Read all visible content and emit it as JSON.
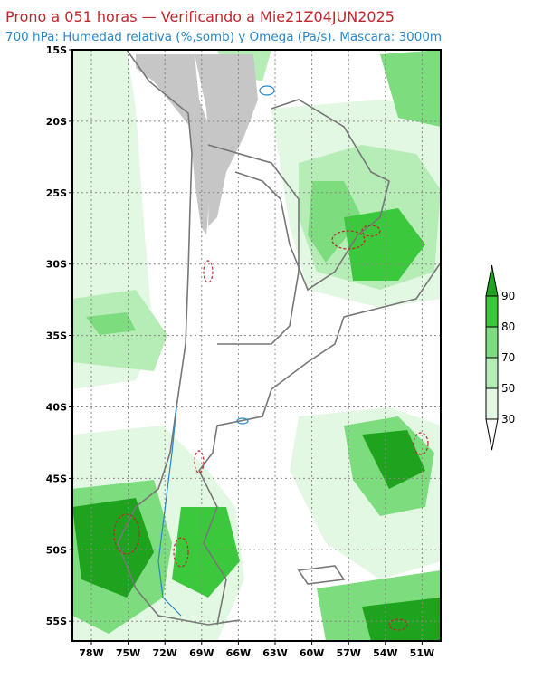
{
  "header": {
    "title": "Prono a 051 horas — Verificando a Mie21Z04JUN2025",
    "subtitle": "700 hPa: Humedad relativa (%,somb) y Omega (Pa/s). Mascara: 3000m"
  },
  "map": {
    "lat_labels": [
      "15S",
      "20S",
      "25S",
      "30S",
      "35S",
      "40S",
      "45S",
      "50S",
      "55S"
    ],
    "lon_labels": [
      "78W",
      "75W",
      "72W",
      "69W",
      "66W",
      "63W",
      "60W",
      "57W",
      "54W",
      "51W"
    ]
  },
  "colorbar": {
    "labels": [
      "90",
      "80",
      "70",
      "50",
      "30"
    ]
  }
}
